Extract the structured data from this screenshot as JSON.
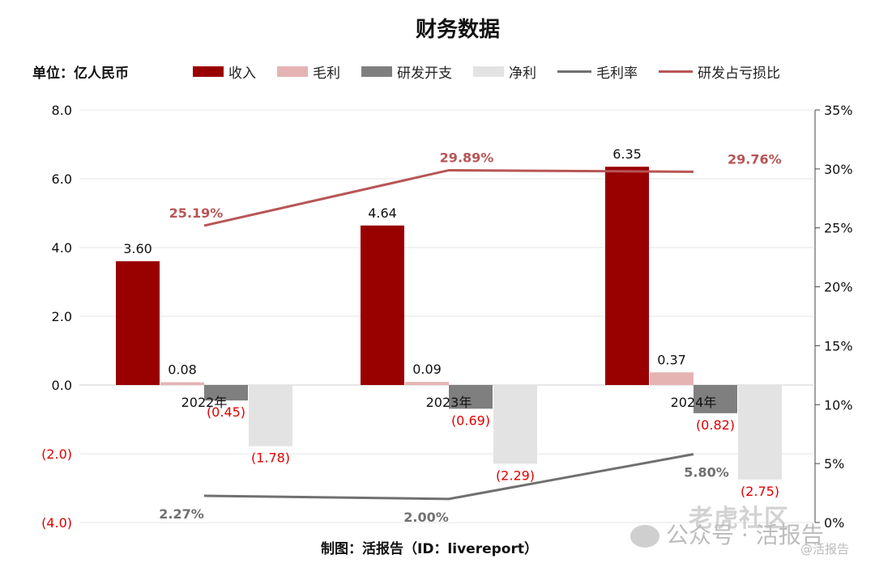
{
  "title": "财务数据",
  "unit_label": "单位：亿人民币",
  "footer": "制图：活报告（ID：livereport）",
  "watermarks": {
    "main": "老虎社区",
    "wechat": "公众号 · 活报告",
    "small": "@活报告"
  },
  "colors": {
    "revenue": "#990000",
    "gross_profit": "#e6b3b3",
    "rd": "#7f7f7f",
    "net_profit": "#e3e3e3",
    "gross_margin_line": "#707070",
    "rd_ratio_line": "#b85555",
    "negative_label": "#e00000"
  },
  "legend": [
    {
      "label": "收入",
      "kind": "bar",
      "color": "#990000"
    },
    {
      "label": "毛利",
      "kind": "bar",
      "color": "#e6b3b3"
    },
    {
      "label": "研发开支",
      "kind": "bar",
      "color": "#7f7f7f"
    },
    {
      "label": "净利",
      "kind": "bar",
      "color": "#e3e3e3"
    },
    {
      "label": "毛利率",
      "kind": "line",
      "color": "#707070"
    },
    {
      "label": "研发占亏损比",
      "kind": "line",
      "color": "#b85555"
    }
  ],
  "chart_data": {
    "type": "bar",
    "categories": [
      "2022年",
      "2023年",
      "2024年"
    ],
    "series": [
      {
        "name": "收入",
        "values": [
          3.6,
          4.64,
          6.35
        ],
        "labels": [
          "3.60",
          "4.64",
          "6.35"
        ]
      },
      {
        "name": "毛利",
        "values": [
          0.08,
          0.09,
          0.37
        ],
        "labels": [
          "0.08",
          "0.09",
          "0.37"
        ]
      },
      {
        "name": "研发开支",
        "values": [
          -0.45,
          -0.69,
          -0.82
        ],
        "labels": [
          "(0.45)",
          "(0.69)",
          "(0.82)"
        ]
      },
      {
        "name": "净利",
        "values": [
          -1.78,
          -2.29,
          -2.75
        ],
        "labels": [
          "(1.78)",
          "(2.29)",
          "(2.75)"
        ]
      }
    ],
    "line_series": [
      {
        "name": "毛利率",
        "axis": "right",
        "values": [
          2.27,
          2.0,
          5.8
        ],
        "labels": [
          "2.27%",
          "2.00%",
          "5.80%"
        ]
      },
      {
        "name": "研发占亏损比",
        "axis": "right",
        "values": [
          25.19,
          29.89,
          29.76
        ],
        "labels": [
          "25.19%",
          "29.89%",
          "29.76%"
        ]
      }
    ],
    "left_axis": {
      "ylim": [
        -4,
        8
      ],
      "ticks": [
        8,
        6,
        4,
        2,
        0,
        -2,
        -4
      ],
      "tick_labels": [
        "8.0",
        "6.0",
        "4.0",
        "2.0",
        "0.0",
        "(2.0)",
        "(4.0)"
      ]
    },
    "right_axis": {
      "ylim": [
        0,
        35
      ],
      "ticks": [
        35,
        30,
        25,
        20,
        15,
        10,
        5,
        0
      ],
      "tick_labels": [
        "35%",
        "30%",
        "25%",
        "20%",
        "15%",
        "10%",
        "5%",
        "0%"
      ]
    },
    "grid": true
  }
}
